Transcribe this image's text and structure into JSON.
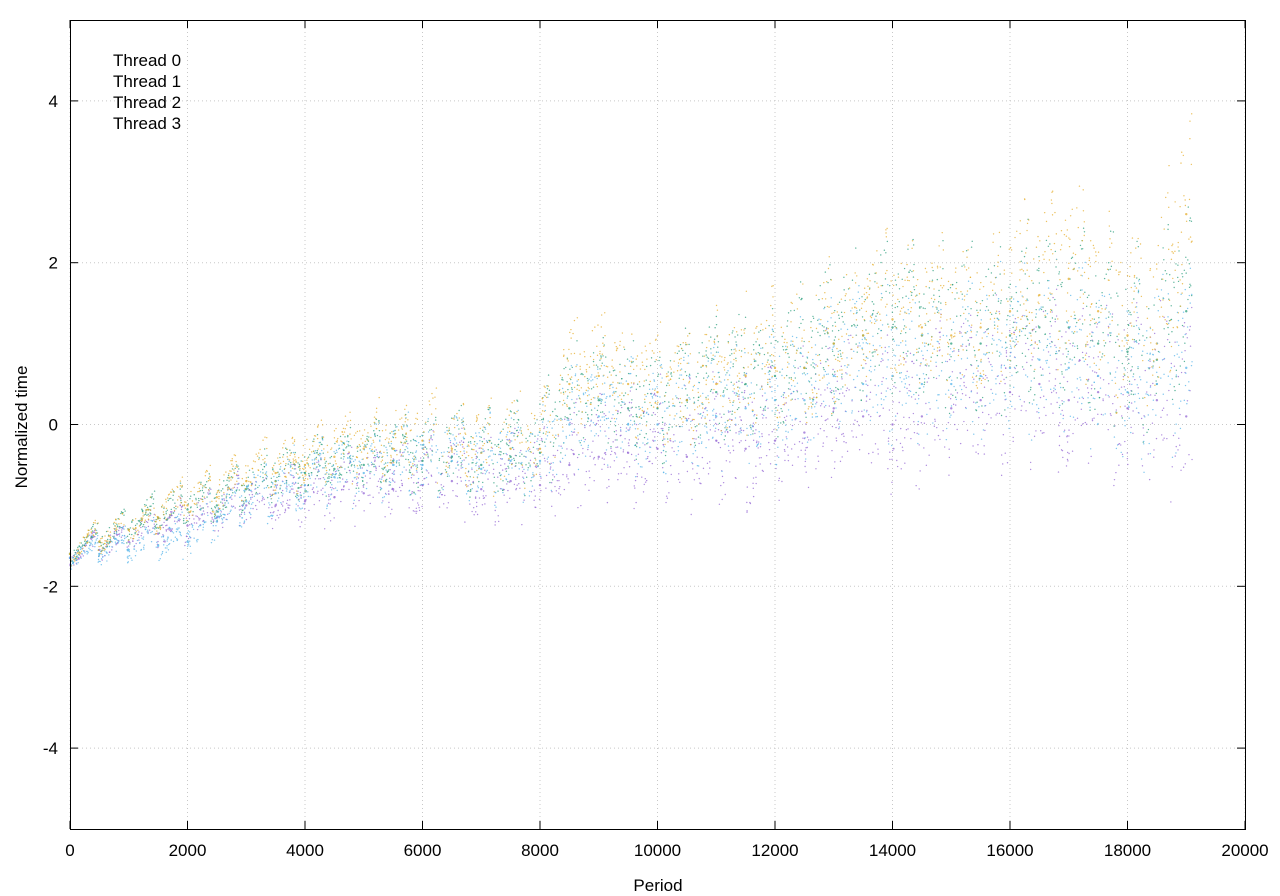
{
  "chart_data": {
    "type": "scatter",
    "title": "",
    "xlabel": "Period",
    "ylabel": "Normalized time",
    "xlim": [
      0,
      20000
    ],
    "ylim": [
      -5,
      5
    ],
    "xticks": [
      0,
      2000,
      4000,
      6000,
      8000,
      10000,
      12000,
      14000,
      16000,
      18000,
      20000
    ],
    "yticks": [
      -4,
      -2,
      0,
      2,
      4
    ],
    "grid": true,
    "legend_position": "top-left",
    "series": [
      {
        "name": "Thread 0",
        "color": "#9467d4",
        "x": [
          0,
          500,
          1000,
          1500,
          2000,
          2500,
          3000,
          3500,
          4000,
          4500,
          5000,
          5500,
          6000,
          6500,
          7000,
          7500,
          8000,
          8500,
          9000,
          9500,
          10000,
          10500,
          11000,
          11500,
          12000,
          12500,
          13000,
          13500,
          14000,
          14500,
          15000,
          15500,
          16000,
          16500,
          17000,
          17500,
          18000,
          18500,
          19000
        ],
        "y": [
          -1.65,
          -1.55,
          -1.45,
          -1.35,
          -1.25,
          -1.15,
          -1.0,
          -1.0,
          -0.95,
          -0.9,
          -0.85,
          -0.8,
          -0.75,
          -0.7,
          -0.8,
          -0.7,
          -0.75,
          -0.5,
          -0.4,
          -0.35,
          -0.3,
          -0.4,
          -0.2,
          -0.3,
          -0.2,
          -0.1,
          0.2,
          0.1,
          0.0,
          0.1,
          0.2,
          0.3,
          0.4,
          0.5,
          0.3,
          0.4,
          0.2,
          0.3,
          0.1
        ]
      },
      {
        "name": "Thread 1",
        "color": "#2a9d7c",
        "x": [
          0,
          500,
          1000,
          1500,
          2000,
          2500,
          3000,
          3500,
          4000,
          4500,
          5000,
          5500,
          6000,
          6500,
          7000,
          7500,
          8000,
          8500,
          9000,
          9500,
          10000,
          10500,
          11000,
          11500,
          12000,
          12500,
          13000,
          13500,
          14000,
          14500,
          15000,
          15500,
          16000,
          16500,
          17000,
          17500,
          18000,
          18500,
          19000
        ],
        "y": [
          -1.6,
          -1.45,
          -1.3,
          -1.15,
          -1.05,
          -1.0,
          -0.8,
          -0.7,
          -0.6,
          -0.55,
          -0.5,
          -0.45,
          -0.45,
          -0.4,
          -0.5,
          -0.4,
          -0.35,
          0.2,
          0.3,
          0.2,
          0.2,
          0.3,
          0.4,
          0.5,
          0.6,
          0.7,
          1.0,
          1.1,
          1.2,
          1.1,
          1.0,
          1.0,
          1.1,
          1.2,
          1.2,
          1.0,
          0.9,
          0.8,
          1.4
        ]
      },
      {
        "name": "Thread 2",
        "color": "#e5ad2c",
        "x": [
          0,
          500,
          1000,
          1500,
          2000,
          2500,
          3000,
          3500,
          4000,
          4500,
          5000,
          5500,
          6000,
          6500,
          7000,
          7500,
          8000,
          8500,
          9000,
          9500,
          10000,
          10500,
          11000,
          11500,
          12000,
          12500,
          13000,
          13500,
          14000,
          14500,
          15000,
          15500,
          16000,
          16500,
          17000,
          17500,
          18000,
          18500,
          19000
        ],
        "y": [
          -1.6,
          -1.45,
          -1.3,
          -1.15,
          -1.0,
          -0.9,
          -0.7,
          -0.6,
          -0.5,
          -0.4,
          -0.3,
          -0.3,
          -0.2,
          -0.3,
          -0.35,
          -0.3,
          -0.3,
          0.5,
          0.6,
          0.5,
          0.4,
          0.3,
          0.5,
          0.6,
          0.7,
          0.7,
          1.0,
          1.1,
          1.3,
          1.2,
          1.1,
          1.2,
          1.4,
          1.6,
          1.8,
          1.4,
          1.1,
          1.0,
          2.6
        ]
      },
      {
        "name": "Thread 3",
        "color": "#56b4e9",
        "x": [
          0,
          500,
          1000,
          1500,
          2000,
          2500,
          3000,
          3500,
          4000,
          4500,
          5000,
          5500,
          6000,
          6500,
          7000,
          7500,
          8000,
          8500,
          9000,
          9500,
          10000,
          10500,
          11000,
          11500,
          12000,
          12500,
          13000,
          13500,
          14000,
          14500,
          15000,
          15500,
          16000,
          16500,
          17000,
          17500,
          18000,
          18500,
          19000
        ],
        "y": [
          -1.65,
          -1.6,
          -1.55,
          -1.5,
          -1.45,
          -1.2,
          -0.95,
          -0.85,
          -0.75,
          -0.65,
          -0.6,
          -0.5,
          -0.5,
          -0.45,
          -0.55,
          -0.45,
          -0.45,
          0.0,
          0.1,
          0.0,
          0.0,
          0.05,
          0.1,
          0.2,
          0.3,
          0.3,
          0.6,
          0.5,
          0.6,
          0.5,
          0.5,
          0.6,
          0.7,
          0.8,
          0.7,
          0.6,
          0.4,
          0.5,
          0.7
        ]
      }
    ]
  }
}
